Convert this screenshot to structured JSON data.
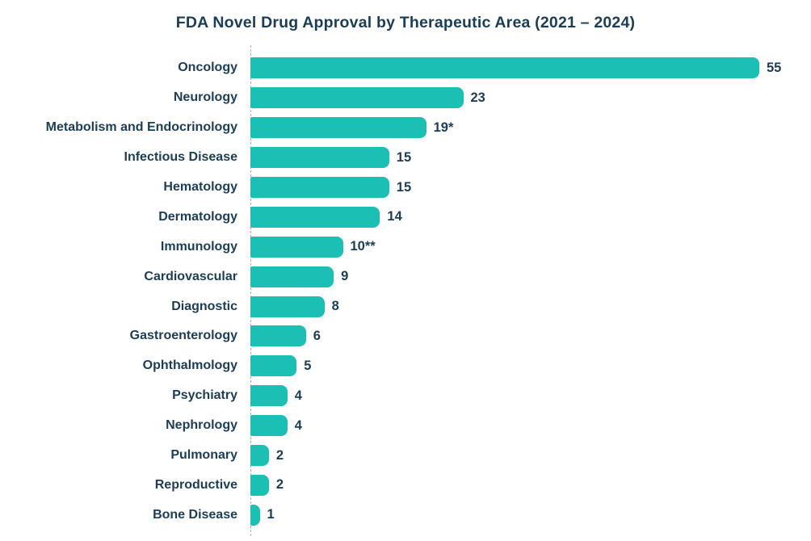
{
  "chart_data": {
    "type": "bar",
    "orientation": "horizontal",
    "title": "FDA Novel Drug Approval by Therapeutic Area (2021 – 2024)",
    "categories": [
      "Oncology",
      "Neurology",
      "Metabolism and Endocrinology",
      "Infectious Disease",
      "Hematology",
      "Dermatology",
      "Immunology",
      "Cardiovascular",
      "Diagnostic",
      "Gastroenterology",
      "Ophthalmology",
      "Psychiatry",
      "Nephrology",
      "Pulmonary",
      "Reproductive",
      "Bone Disease"
    ],
    "values": [
      55,
      23,
      19,
      15,
      15,
      14,
      10,
      9,
      8,
      6,
      5,
      4,
      4,
      2,
      2,
      1
    ],
    "value_labels": [
      "55",
      "23",
      "19*",
      "15",
      "15",
      "14",
      "10**",
      "9",
      "8",
      "6",
      "5",
      "4",
      "4",
      "2",
      "2",
      "1"
    ],
    "xlabel": "",
    "ylabel": "",
    "xlim": [
      0,
      58
    ],
    "grid": "off",
    "legend": "none",
    "axis_style": "dashed vertical baseline at 0",
    "bar_color": "#1bbfb4",
    "text_color": "#1c3d56",
    "axis_line_color": "#a8b2ba"
  }
}
